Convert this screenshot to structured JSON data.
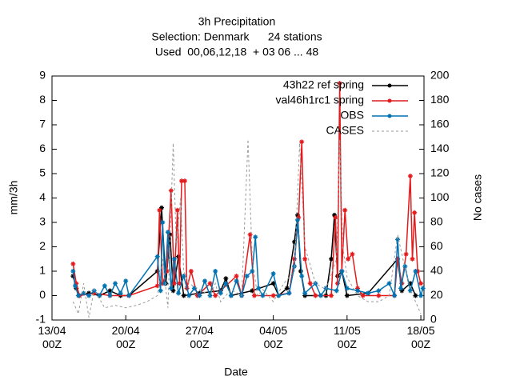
{
  "chart_data": {
    "type": "line",
    "title": "3h Precipitation",
    "subtitle": [
      "Selection: Denmark      24 stations",
      "Used  00,06,12,18  + 03 06 ... 48"
    ],
    "x_label": "Date",
    "y_label": "mm/3h",
    "y2_label": "No cases",
    "xlim": [
      0,
      35.3
    ],
    "xticks": [
      {
        "value": 0,
        "label": "13/04\n00Z"
      },
      {
        "value": 7,
        "label": "20/04\n00Z"
      },
      {
        "value": 14,
        "label": "27/04\n00Z"
      },
      {
        "value": 21,
        "label": "04/05\n00Z"
      },
      {
        "value": 28,
        "label": "11/05\n00Z"
      },
      {
        "value": 35,
        "label": "18/05\n00Z"
      }
    ],
    "ylim": [
      -1,
      9
    ],
    "yticks": [
      -1,
      0,
      1,
      2,
      3,
      4,
      5,
      6,
      7,
      8,
      9
    ],
    "y2lim": [
      0,
      200
    ],
    "y2ticks": [
      0,
      20,
      40,
      60,
      80,
      100,
      120,
      140,
      160,
      180,
      200
    ],
    "legend": "top-right",
    "series": [
      {
        "name": "43h22 ref spring",
        "color": "#000000",
        "marker": true,
        "x": [
          2.0,
          2.3,
          2.6,
          3.5,
          4.5,
          5.5,
          6.5,
          7.3,
          10.0,
          10.4,
          10.8,
          11.2,
          11.5,
          12.0,
          12.5,
          14.0,
          16.0,
          16.5,
          17.0,
          19.0,
          21.0,
          21.5,
          22.3,
          23.0,
          23.3,
          23.6,
          24.0,
          26.0,
          26.5,
          26.8,
          27.1,
          27.5,
          28.0,
          30.0,
          32.8,
          33.2,
          34.0,
          34.5
        ],
        "values": [
          0.8,
          0.3,
          0.0,
          0.1,
          0.0,
          0.2,
          0.0,
          0.0,
          1.0,
          3.6,
          0.5,
          2.5,
          0.2,
          1.6,
          0.0,
          0.1,
          0.2,
          0.7,
          0.0,
          0.2,
          0.5,
          0.0,
          0.3,
          2.2,
          3.3,
          1.0,
          0.0,
          0.0,
          1.5,
          3.3,
          0.8,
          1.0,
          0.0,
          0.1,
          1.5,
          0.2,
          0.5,
          0.0
        ]
      },
      {
        "name": "val46h1rc1 spring",
        "color": "#e41a1c",
        "marker": true,
        "x": [
          2.0,
          2.3,
          2.6,
          4.0,
          5.5,
          7.3,
          10.0,
          10.2,
          10.5,
          10.9,
          11.3,
          11.6,
          11.9,
          12.1,
          12.3,
          12.6,
          12.8,
          13.2,
          13.8,
          15.0,
          15.5,
          17.5,
          18.0,
          18.8,
          19.2,
          21.0,
          22.5,
          23.0,
          23.4,
          23.7,
          24.0,
          24.5,
          25.0,
          26.5,
          26.9,
          27.1,
          27.3,
          27.5,
          27.8,
          28.1,
          28.5,
          29.0,
          29.5,
          31.0,
          32.5,
          32.8,
          33.2,
          33.6,
          34.0,
          34.2,
          34.4,
          34.7,
          35.0
        ],
        "values": [
          1.3,
          0.5,
          0.0,
          0.1,
          0.0,
          0.0,
          0.4,
          3.5,
          0.5,
          1.0,
          4.3,
          0.5,
          3.5,
          0.5,
          4.7,
          4.7,
          0.3,
          1.0,
          0.0,
          0.5,
          0.0,
          0.8,
          0.0,
          2.5,
          0.0,
          0.0,
          0.1,
          1.5,
          3.2,
          6.3,
          1.5,
          0.5,
          0.0,
          0.0,
          3.2,
          0.5,
          8.7,
          1.0,
          3.5,
          1.5,
          1.7,
          0.3,
          0.0,
          0.0,
          0.0,
          1.5,
          0.5,
          1.7,
          4.9,
          1.5,
          3.4,
          1.0,
          0.5
        ]
      },
      {
        "name": "OBS",
        "color": "#0072b2",
        "marker": true,
        "x": [
          2.0,
          2.2,
          2.5,
          3.0,
          3.5,
          4.0,
          4.5,
          5.0,
          5.5,
          6.0,
          6.5,
          7.0,
          7.3,
          10.0,
          10.3,
          10.5,
          10.7,
          11.0,
          11.3,
          11.6,
          12.0,
          12.5,
          13.0,
          13.5,
          14.0,
          14.5,
          15.0,
          15.5,
          16.0,
          16.5,
          17.0,
          17.5,
          18.0,
          18.5,
          19.0,
          19.3,
          19.6,
          20.0,
          21.0,
          21.5,
          22.5,
          23.0,
          23.3,
          23.7,
          24.0,
          25.0,
          25.5,
          26.0,
          27.0,
          27.5,
          28.0,
          29.0,
          30.0,
          31.0,
          32.0,
          32.5,
          32.8,
          33.1,
          33.5,
          34.0,
          34.5,
          35.0,
          35.2
        ],
        "values": [
          1.0,
          0.4,
          0.0,
          0.1,
          0.0,
          0.2,
          0.0,
          0.4,
          0.0,
          0.5,
          0.1,
          0.6,
          0.0,
          1.6,
          0.2,
          3.0,
          0.5,
          2.6,
          0.3,
          1.5,
          0.1,
          0.8,
          0.0,
          0.3,
          0.0,
          0.6,
          0.0,
          1.0,
          0.1,
          0.5,
          0.0,
          0.6,
          0.0,
          0.8,
          1.0,
          2.4,
          0.3,
          0.0,
          0.9,
          0.0,
          0.1,
          1.2,
          3.1,
          0.8,
          0.1,
          0.5,
          0.0,
          0.3,
          0.2,
          1.0,
          0.3,
          0.2,
          0.1,
          0.2,
          0.5,
          0.0,
          2.3,
          0.3,
          1.2,
          0.2,
          1.0,
          0.0,
          0.3
        ]
      },
      {
        "name": "CASES",
        "color": "#999999",
        "dashed": true,
        "axis": "y2",
        "x": [
          2.0,
          2.5,
          3.0,
          3.5,
          4.0,
          5.0,
          6.0,
          7.0,
          8.0,
          9.0,
          10.0,
          10.5,
          11.0,
          11.5,
          11.8,
          12.2,
          12.5,
          13.0,
          14.0,
          15.0,
          15.5,
          16.0,
          17.0,
          18.0,
          18.6,
          19.0,
          19.5,
          20.0,
          21.0,
          22.0,
          23.0,
          23.5,
          24.0,
          25.0,
          26.0,
          27.0,
          27.3,
          27.6,
          28.0,
          29.0,
          30.0,
          31.0,
          32.0,
          32.8,
          33.3,
          34.0,
          35.0
        ],
        "values": [
          15,
          5,
          30,
          2,
          25,
          10,
          12,
          10,
          12,
          15,
          20,
          50,
          10,
          145,
          60,
          100,
          40,
          30,
          25,
          20,
          30,
          15,
          25,
          20,
          148,
          50,
          20,
          25,
          15,
          30,
          40,
          145,
          60,
          30,
          25,
          50,
          148,
          60,
          35,
          20,
          15,
          15,
          20,
          70,
          50,
          25,
          5
        ]
      }
    ]
  }
}
